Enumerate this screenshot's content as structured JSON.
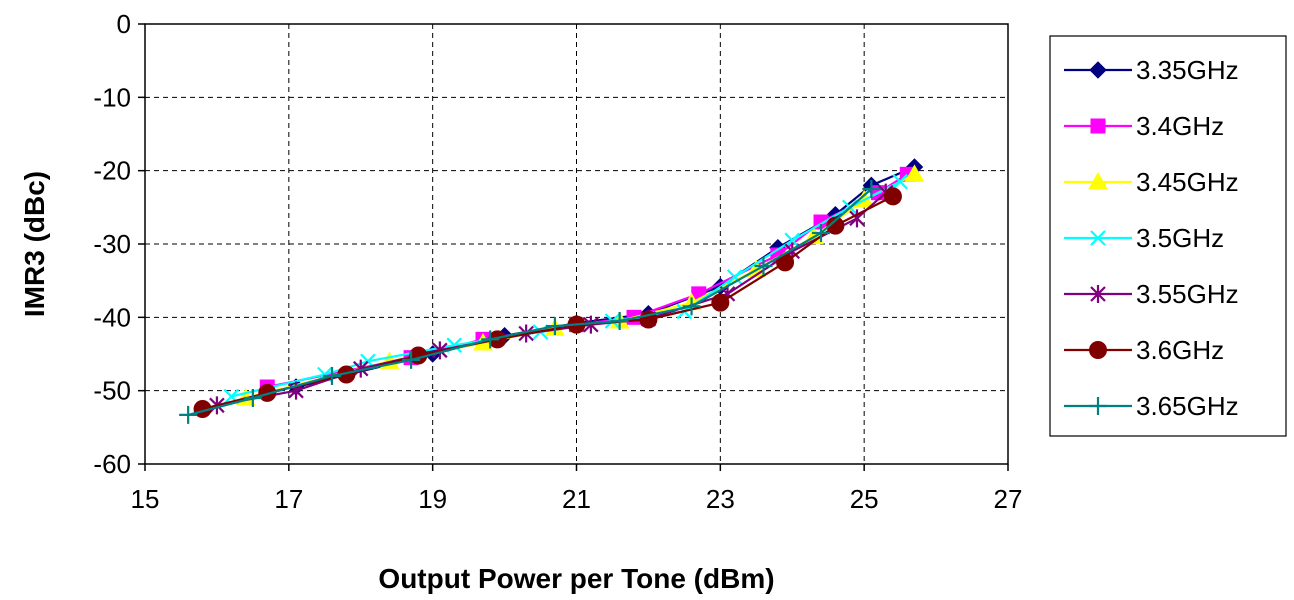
{
  "chart_data": {
    "type": "line",
    "title": "",
    "xlabel": "Output Power per Tone (dBm)",
    "ylabel": "IMR3 (dBc)",
    "xlim": [
      15,
      27
    ],
    "ylim": [
      -60,
      0
    ],
    "xticks": [
      "15",
      "17",
      "19",
      "21",
      "23",
      "25",
      "27"
    ],
    "yticks": [
      "0",
      "-10",
      "-20",
      "-30",
      "-40",
      "-50",
      "-60"
    ],
    "grid": true,
    "legend_position": "right",
    "series": [
      {
        "name": "3.35GHz",
        "color": "#000080",
        "marker": "diamond",
        "x": [
          17.1,
          19.0,
          20.0,
          21.0,
          22.0,
          23.0,
          23.8,
          24.6,
          25.1,
          25.7
        ],
        "y": [
          -49.5,
          -45.0,
          -42.5,
          -40.8,
          -39.5,
          -35.8,
          -30.5,
          -26.0,
          -22.0,
          -19.5
        ]
      },
      {
        "name": "3.4GHz",
        "color": "#FF00FF",
        "marker": "square",
        "x": [
          16.7,
          18.7,
          19.7,
          21.0,
          21.8,
          22.7,
          23.8,
          24.4,
          25.2,
          25.6
        ],
        "y": [
          -49.5,
          -45.5,
          -43.0,
          -41.0,
          -40.0,
          -36.8,
          -31.5,
          -27.0,
          -23.0,
          -20.5
        ]
      },
      {
        "name": "3.45GHz",
        "color": "#FFFF00",
        "marker": "triangle",
        "x": [
          16.4,
          18.4,
          19.7,
          20.7,
          21.6,
          22.6,
          23.5,
          24.3,
          25.0,
          25.7
        ],
        "y": [
          -51.0,
          -46.0,
          -43.5,
          -41.5,
          -40.5,
          -38.0,
          -33.5,
          -29.0,
          -24.0,
          -20.5
        ]
      },
      {
        "name": "3.5GHz",
        "color": "#00FFFF",
        "marker": "x",
        "x": [
          16.2,
          17.5,
          18.1,
          19.3,
          20.5,
          21.5,
          22.5,
          23.2,
          24.0,
          24.8,
          25.5
        ],
        "y": [
          -50.8,
          -47.8,
          -46.0,
          -43.8,
          -42.0,
          -40.5,
          -39.2,
          -34.5,
          -29.5,
          -25.0,
          -21.5
        ]
      },
      {
        "name": "3.55GHz",
        "color": "#800080",
        "marker": "asterisk",
        "x": [
          16.0,
          17.1,
          18.0,
          19.1,
          20.3,
          21.2,
          22.0,
          23.1,
          24.0,
          24.9,
          25.3
        ],
        "y": [
          -52.0,
          -50.0,
          -47.0,
          -44.5,
          -42.2,
          -41.0,
          -40.2,
          -36.8,
          -31.0,
          -26.5,
          -23.0
        ]
      },
      {
        "name": "3.6GHz",
        "color": "#800000",
        "marker": "circle",
        "x": [
          15.8,
          16.7,
          17.8,
          18.8,
          19.9,
          21.0,
          22.0,
          23.0,
          23.9,
          24.6,
          25.4
        ],
        "y": [
          -52.5,
          -50.3,
          -47.8,
          -45.2,
          -43.0,
          -41.0,
          -40.3,
          -38.0,
          -32.5,
          -27.5,
          -23.5
        ]
      },
      {
        "name": "3.65GHz",
        "color": "#008080",
        "marker": "plus",
        "x": [
          15.6,
          16.5,
          17.6,
          18.7,
          19.8,
          20.7,
          21.6,
          22.6,
          23.6,
          24.4,
          25.1
        ],
        "y": [
          -53.3,
          -51.0,
          -48.0,
          -45.8,
          -43.0,
          -41.2,
          -40.5,
          -38.5,
          -33.0,
          -28.5,
          -22.5
        ]
      }
    ]
  }
}
